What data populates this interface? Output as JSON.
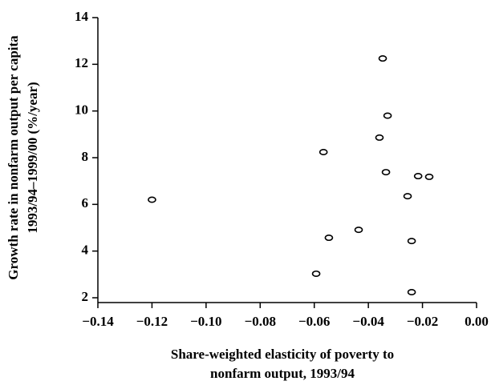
{
  "chart_data": {
    "type": "scatter",
    "xlabel": [
      "Share-weighted elasticity of poverty to",
      "nonfarm output, 1993/94"
    ],
    "ylabel": [
      "Growth rate in nonfarm output per capita",
      "1993/94–1999/00 (%/year)"
    ],
    "x": [
      -0.12,
      -0.0347,
      -0.0329,
      -0.0359,
      -0.0566,
      -0.0335,
      -0.0216,
      -0.0175,
      -0.0255,
      -0.0436,
      -0.0546,
      -0.024,
      -0.0593,
      -0.024
    ],
    "values": [
      6.2,
      12.25,
      9.8,
      8.86,
      8.24,
      7.38,
      7.21,
      7.18,
      6.35,
      4.91,
      4.57,
      4.43,
      3.03,
      2.24
    ],
    "color": "#000000",
    "xlim": [
      -0.14,
      0.0
    ],
    "ylim": [
      2,
      14
    ],
    "xticks": [
      {
        "value": -0.14,
        "label": "−0.14"
      },
      {
        "value": -0.12,
        "label": "−0.12"
      },
      {
        "value": -0.1,
        "label": "−0.10"
      },
      {
        "value": -0.08,
        "label": "−0.08"
      },
      {
        "value": -0.06,
        "label": "−0.06"
      },
      {
        "value": -0.04,
        "label": "−0.04"
      },
      {
        "value": -0.02,
        "label": "−0.02"
      },
      {
        "value": 0.0,
        "label": "0.00"
      }
    ],
    "yticks": [
      2,
      4,
      6,
      8,
      10,
      12,
      14
    ]
  }
}
